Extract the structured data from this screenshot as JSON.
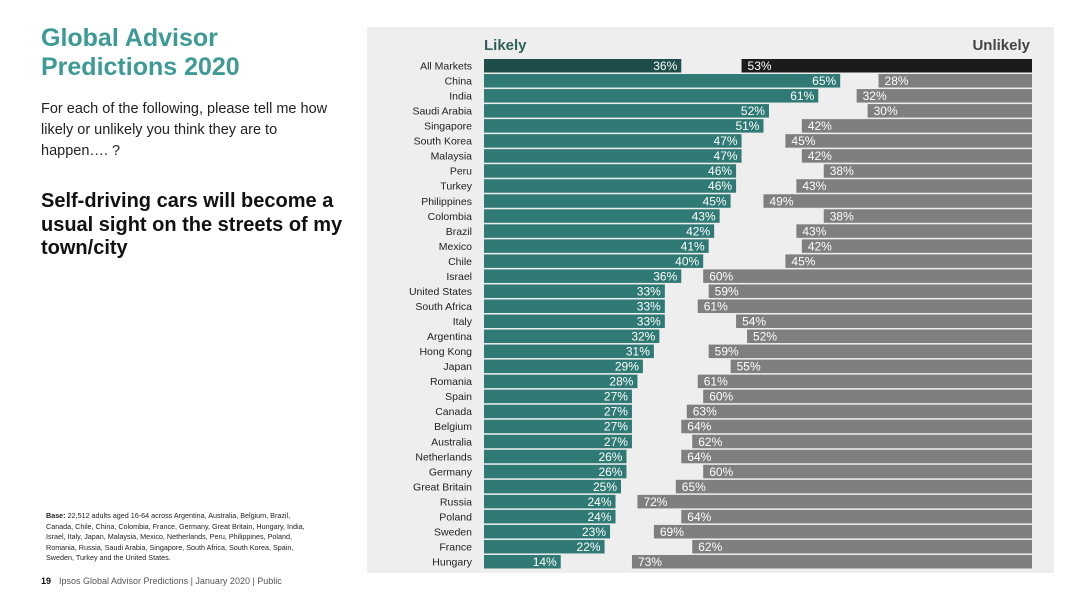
{
  "header": {
    "title": "Global Advisor Predictions 2020",
    "question": "For each of the following, please tell me how likely or unlikely you think they are to happen…. ?",
    "statement": "Self-driving cars will become a usual sight on the streets of my town/city"
  },
  "base": {
    "label": "Base:",
    "text": "22,512 adults aged 16-64 across Argentina, Australia, Belgium, Brazil, Canada, Chile, China, Colombia, France, Germany, Great Britain, Hungary, India, Israel, Italy, Japan, Malaysia, Mexico, Netherlands, Peru, Philippines, Poland, Romania, Russia, Saudi Arabia, Singapore, South Africa, South Korea, Spain, Sweden, Turkey and the United States."
  },
  "footer": {
    "page": "19",
    "text": "Ipsos Global Advisor Predictions | January 2020 | Public"
  },
  "colors": {
    "likely": "#2f7a74",
    "likely_total": "#1f4d49",
    "unlikely": "#7f7f7f",
    "unlikely_total": "#1b1b1b"
  },
  "chart_data": {
    "type": "bar",
    "orientation": "horizontal-diverging",
    "legend": [
      "Likely",
      "Unlikely"
    ],
    "xlim": [
      0,
      100
    ],
    "categories": [
      "All Markets",
      "China",
      "India",
      "Saudi Arabia",
      "Singapore",
      "South Korea",
      "Malaysia",
      "Peru",
      "Turkey",
      "Philippines",
      "Colombia",
      "Brazil",
      "Mexico",
      "Chile",
      "Israel",
      "United States",
      "South Africa",
      "Italy",
      "Argentina",
      "Hong Kong",
      "Japan",
      "Romania",
      "Spain",
      "Canada",
      "Belgium",
      "Australia",
      "Netherlands",
      "Germany",
      "Great Britain",
      "Russia",
      "Poland",
      "Sweden",
      "France",
      "Hungary"
    ],
    "series": [
      {
        "name": "Likely",
        "values": [
          36,
          65,
          61,
          52,
          51,
          47,
          47,
          46,
          46,
          45,
          43,
          42,
          41,
          40,
          36,
          33,
          33,
          33,
          32,
          31,
          29,
          28,
          27,
          27,
          27,
          27,
          26,
          26,
          25,
          24,
          24,
          23,
          22,
          14
        ]
      },
      {
        "name": "Unlikely",
        "values": [
          53,
          28,
          32,
          30,
          42,
          45,
          42,
          38,
          43,
          49,
          38,
          43,
          42,
          45,
          60,
          59,
          61,
          54,
          52,
          59,
          55,
          61,
          60,
          63,
          64,
          62,
          64,
          60,
          65,
          72,
          64,
          69,
          62,
          73
        ]
      }
    ]
  }
}
